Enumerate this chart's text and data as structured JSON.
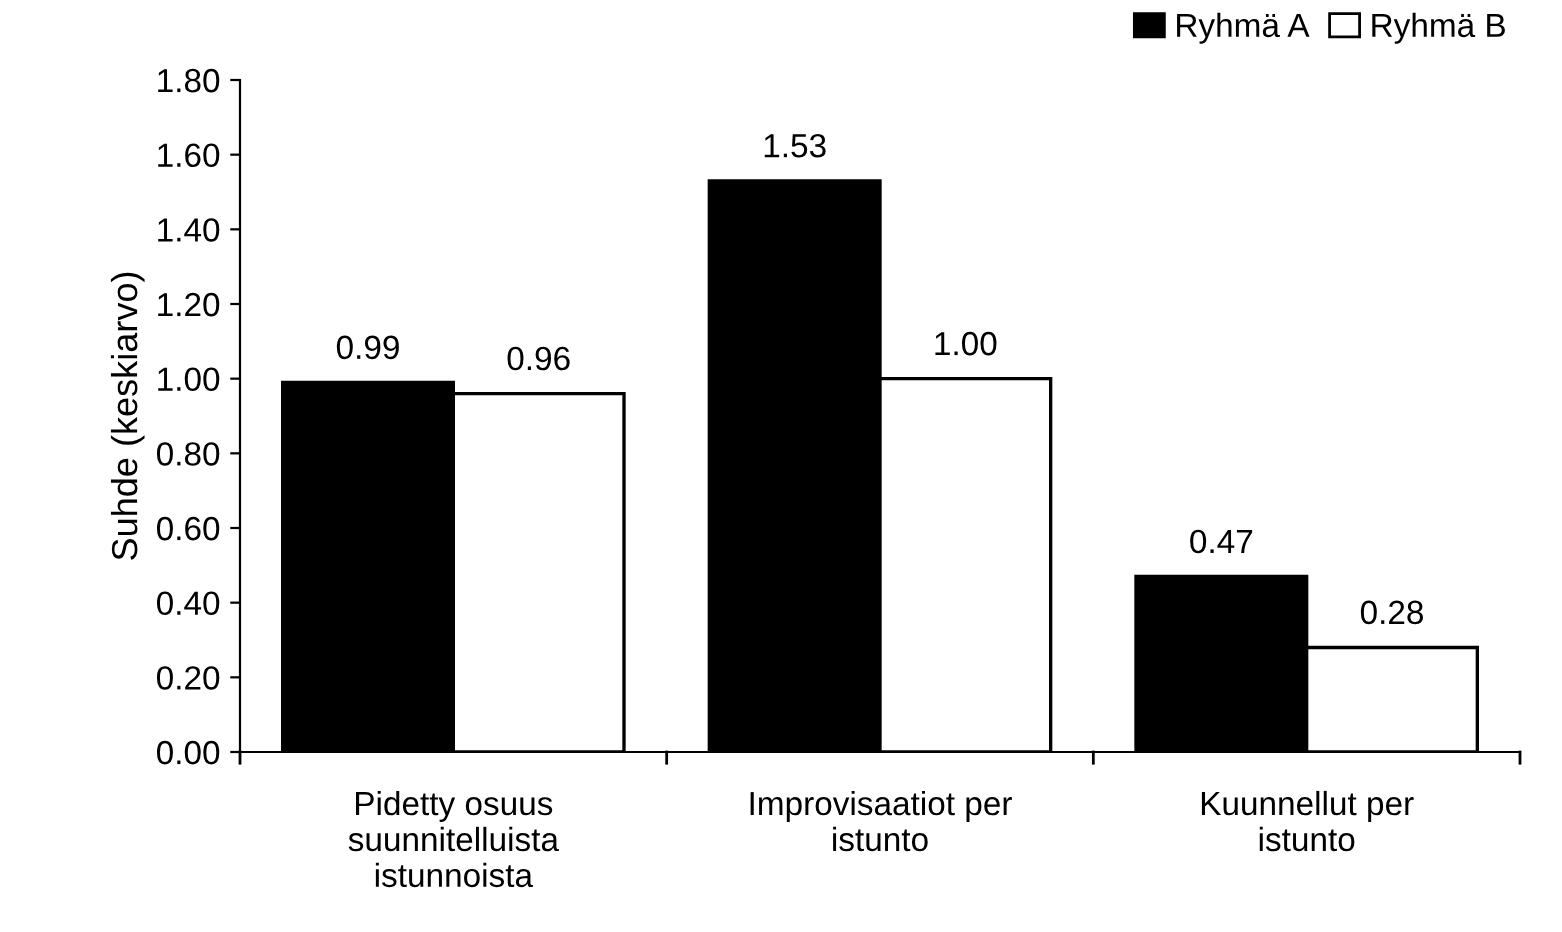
{
  "chart_data": {
    "type": "bar",
    "ylabel": "Suhde (keskiarvo)",
    "categories": [
      "Pidetty osuus\nsuunnitelluista\nistunnoista",
      "Improvisaatiot per\nistunto",
      "Kuunnellut per\nistunto"
    ],
    "series": [
      {
        "name": "Ryhmä A",
        "color": "#000000",
        "values": [
          0.99,
          1.53,
          0.47
        ],
        "value_labels": [
          "0.99",
          "1.53",
          "0.47"
        ]
      },
      {
        "name": "Ryhmä B",
        "color": "#ffffff",
        "values": [
          0.96,
          1.0,
          0.28
        ],
        "value_labels": [
          "0.96",
          "1.00",
          "0.28"
        ]
      }
    ],
    "ylim": [
      0,
      1.8
    ],
    "yticks": [
      {
        "value": 0,
        "label": "0.00"
      },
      {
        "value": 0.2,
        "label": "0.20"
      },
      {
        "value": 0.4,
        "label": "0.40"
      },
      {
        "value": 0.6,
        "label": "0.60"
      },
      {
        "value": 0.8,
        "label": "0.80"
      },
      {
        "value": 1.0,
        "label": "1.00"
      },
      {
        "value": 1.2,
        "label": "1.20"
      },
      {
        "value": 1.4,
        "label": "1.40"
      },
      {
        "value": 1.6,
        "label": "1.60"
      },
      {
        "value": 1.8,
        "label": "1.80"
      }
    ],
    "grid": false,
    "legend": "top right"
  }
}
